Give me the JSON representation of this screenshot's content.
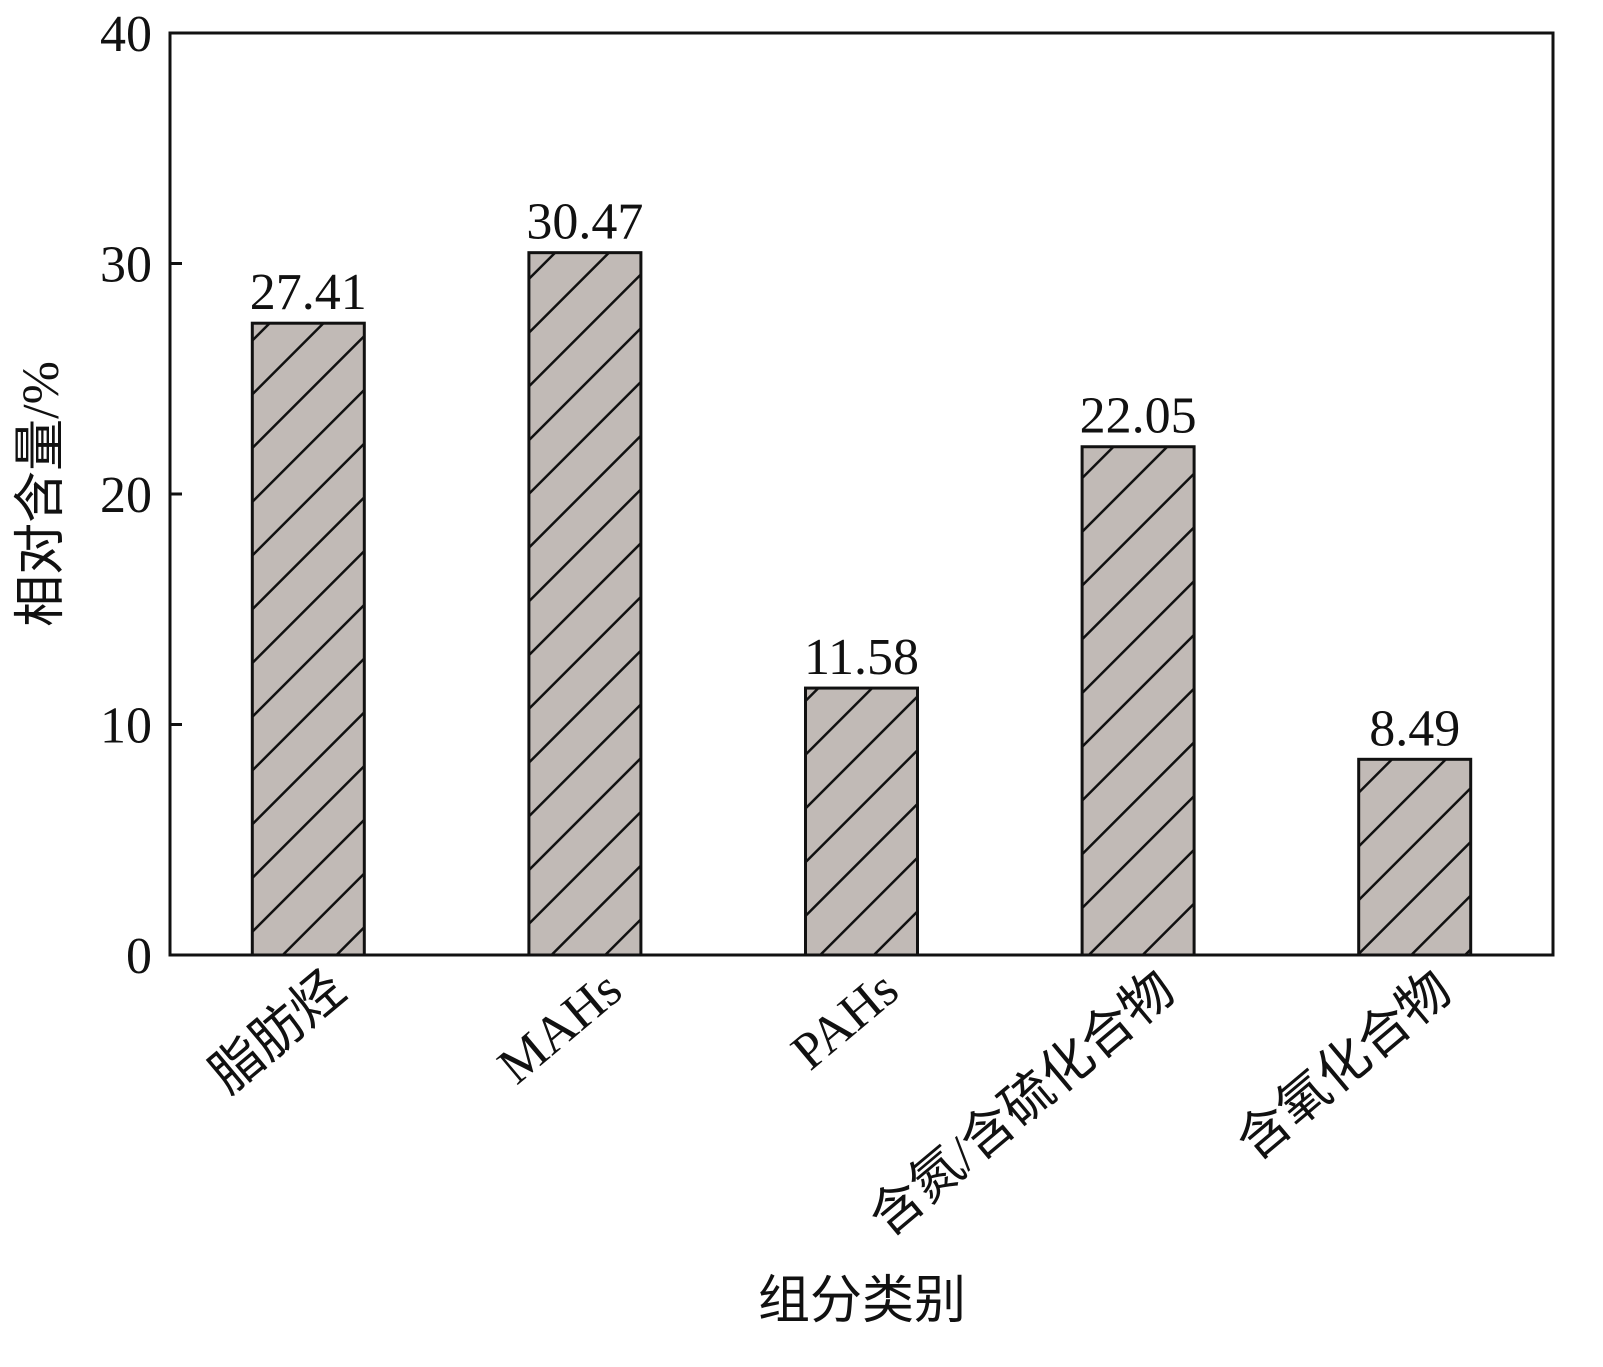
{
  "chart_data": {
    "type": "bar",
    "x_label": "组分类别",
    "y_label": "相对含量/%",
    "categories": [
      "脂肪烃",
      "MAHs",
      "PAHs",
      "含氮/含硫化合物",
      "含氧化合物"
    ],
    "values": [
      27.41,
      30.47,
      11.58,
      22.05,
      8.49
    ],
    "color": "#c1bab6",
    "ylim": [
      0,
      40
    ],
    "yticks": [
      0,
      10,
      20,
      30,
      40
    ]
  }
}
